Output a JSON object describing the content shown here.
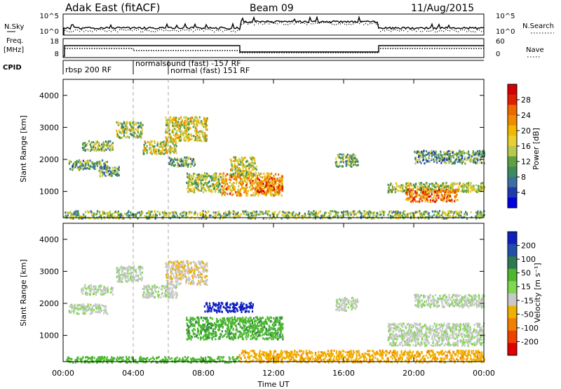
{
  "header": {
    "station": "Adak East (fitACF)",
    "beam": "Beam 09",
    "date": "11/Aug/2015"
  },
  "top_panels": {
    "nsky_label": "N.Sky",
    "nsearch_label": "N.Search",
    "nsky_ticks": [
      "10^5",
      "10^0"
    ],
    "nsearch_ticks": [
      "10^5",
      "10^0"
    ],
    "freq_label": "Freq.",
    "freq_unit": "[MHz]",
    "freq_ticks": [
      "18",
      "8"
    ],
    "nave_label": "Nave",
    "nave_ticks": [
      "60",
      "0"
    ],
    "cpid_label": "CPID",
    "cpid_segments": [
      "rbsp 200 RF",
      "normalsound (fast) -157 RF",
      "normal (fast) 151 RF"
    ]
  },
  "axes": {
    "ylabel": "Slant Range [km]",
    "xlabel": "Time UT",
    "x_ticks": [
      "00:00",
      "04:00",
      "08:00",
      "12:00",
      "16:00",
      "20:00",
      "00:00"
    ],
    "y_ticks": [
      "1000",
      "2000",
      "3000",
      "4000"
    ]
  },
  "colorbars": {
    "power": {
      "label": "Power [dB]",
      "ticks": [
        "28",
        "24",
        "20",
        "16",
        "12",
        "8",
        "4"
      ],
      "colors": [
        "#d40000",
        "#e02000",
        "#ee6a00",
        "#f08a00",
        "#f2b800",
        "#e8d030",
        "#b8c850",
        "#60a040",
        "#3d8a60",
        "#3a6fa0",
        "#1f3ab0",
        "#0000e0"
      ]
    },
    "velocity": {
      "label": "Velocity [m s⁻¹]",
      "ticks": [
        "200",
        "100",
        "50",
        "15",
        "-15",
        "-50",
        "-100",
        "-200"
      ],
      "colors": [
        "#1020c0",
        "#2050a8",
        "#2e7a50",
        "#4cb830",
        "#80d850",
        "#c8c8c8",
        "#f0b000",
        "#f08000",
        "#f04000",
        "#e00000"
      ]
    }
  },
  "chart_data": [
    {
      "type": "heatmap",
      "title": "Power",
      "x_unit": "hours UT",
      "xlim": [
        0,
        24
      ],
      "ylim": [
        180,
        4500
      ],
      "scatter_patches": [
        {
          "t0": 0.3,
          "t1": 2.5,
          "r0": 1700,
          "r1": 2000,
          "value": 10
        },
        {
          "t0": 2.0,
          "t1": 3.2,
          "r0": 1500,
          "r1": 1800,
          "value": 9
        },
        {
          "t0": 1.0,
          "t1": 2.8,
          "r0": 2300,
          "r1": 2600,
          "value": 12
        },
        {
          "t0": 3.0,
          "t1": 4.5,
          "r0": 2700,
          "r1": 3200,
          "value": 13
        },
        {
          "t0": 4.5,
          "t1": 6.5,
          "r0": 2200,
          "r1": 2600,
          "value": 15
        },
        {
          "t0": 5.8,
          "t1": 8.2,
          "r0": 2600,
          "r1": 3350,
          "value": 16
        },
        {
          "t0": 6.0,
          "t1": 7.5,
          "r0": 1800,
          "r1": 2100,
          "value": 10
        },
        {
          "t0": 7.0,
          "t1": 9.0,
          "r0": 1000,
          "r1": 1600,
          "value": 14
        },
        {
          "t0": 9.0,
          "t1": 12.5,
          "r0": 900,
          "r1": 1600,
          "value": 20
        },
        {
          "t0": 9.5,
          "t1": 11.0,
          "r0": 1500,
          "r1": 2100,
          "value": 15
        },
        {
          "t0": 11.0,
          "t1": 12.5,
          "r0": 1000,
          "r1": 1400,
          "value": 24
        },
        {
          "t0": 15.5,
          "t1": 16.8,
          "r0": 1800,
          "r1": 2200,
          "value": 11
        },
        {
          "t0": 18.5,
          "t1": 24.0,
          "r0": 1000,
          "r1": 1300,
          "value": 14
        },
        {
          "t0": 19.5,
          "t1": 22.5,
          "r0": 700,
          "r1": 1100,
          "value": 23
        },
        {
          "t0": 20.0,
          "t1": 24.0,
          "r0": 1900,
          "r1": 2300,
          "value": 9
        },
        {
          "t0": 0.0,
          "t1": 24.0,
          "r0": 180,
          "r1": 420,
          "value": 12
        }
      ]
    },
    {
      "type": "heatmap",
      "title": "Velocity",
      "x_unit": "hours UT",
      "xlim": [
        0,
        24
      ],
      "ylim": [
        180,
        4500
      ],
      "scatter_patches": [
        {
          "t0": 0.3,
          "t1": 2.5,
          "r0": 1700,
          "r1": 2000,
          "value": 0
        },
        {
          "t0": 1.0,
          "t1": 2.8,
          "r0": 2300,
          "r1": 2600,
          "value": 0
        },
        {
          "t0": 3.0,
          "t1": 4.5,
          "r0": 2700,
          "r1": 3200,
          "value": 0
        },
        {
          "t0": 4.5,
          "t1": 6.5,
          "r0": 2200,
          "r1": 2600,
          "value": 0
        },
        {
          "t0": 5.8,
          "t1": 8.2,
          "r0": 2600,
          "r1": 3350,
          "value": -10
        },
        {
          "t0": 7.0,
          "t1": 12.5,
          "r0": 900,
          "r1": 1600,
          "value": 40
        },
        {
          "t0": 8.0,
          "t1": 10.8,
          "r0": 1750,
          "r1": 2050,
          "value": 180
        },
        {
          "t0": 15.5,
          "t1": 16.8,
          "r0": 1800,
          "r1": 2200,
          "value": 0
        },
        {
          "t0": 18.5,
          "t1": 24.0,
          "r0": 700,
          "r1": 1400,
          "value": 0
        },
        {
          "t0": 20.0,
          "t1": 24.0,
          "r0": 1900,
          "r1": 2300,
          "value": 0
        },
        {
          "t0": 0.0,
          "t1": 10.0,
          "r0": 180,
          "r1": 360,
          "value": 30
        },
        {
          "t0": 10.0,
          "t1": 24.0,
          "r0": 180,
          "r1": 560,
          "value": -40
        }
      ]
    }
  ]
}
